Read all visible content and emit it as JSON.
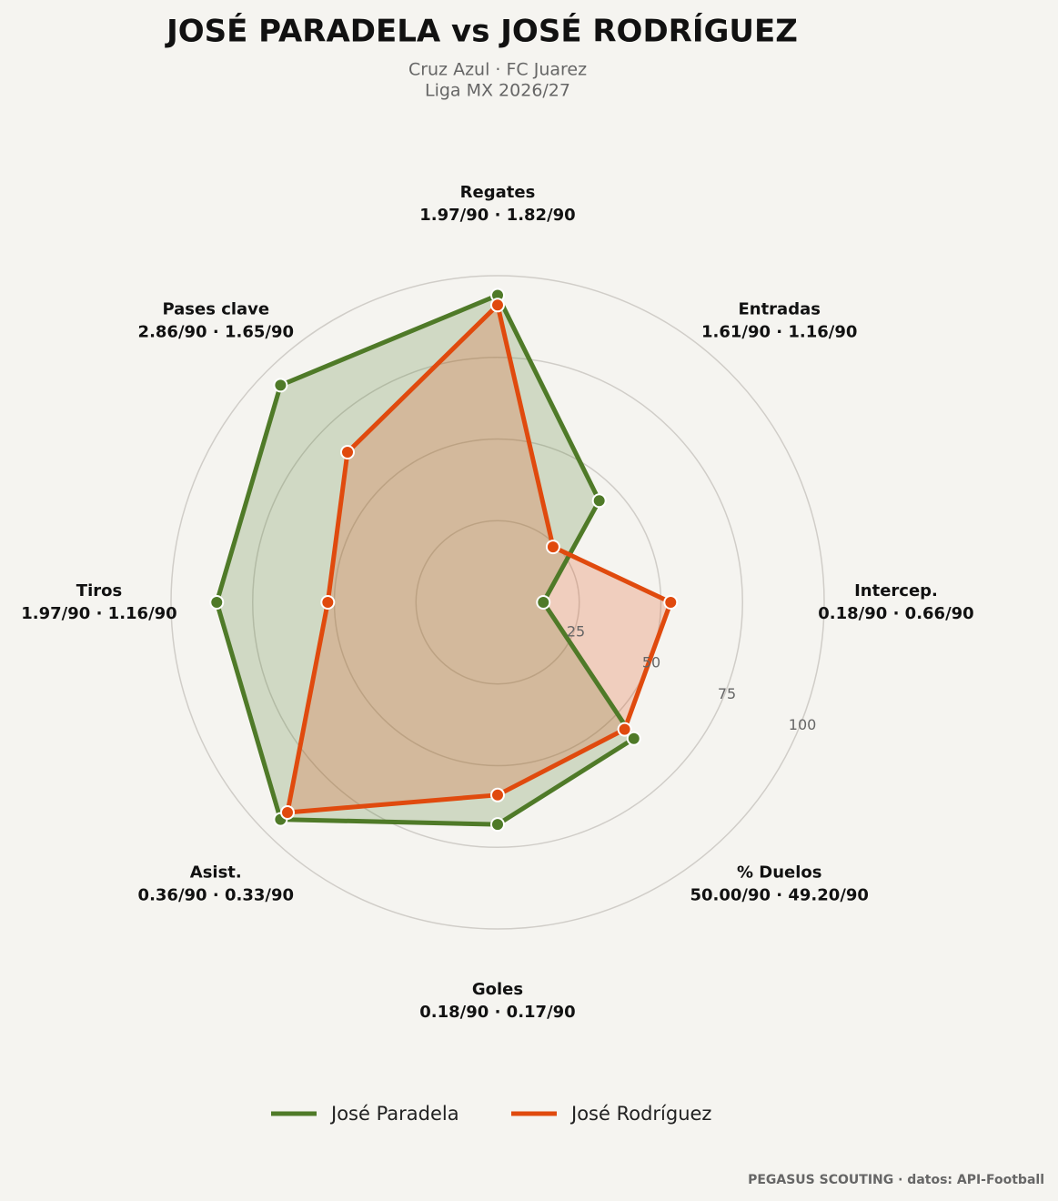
{
  "chart_data": {
    "type": "radar",
    "title": "JOSÉ PARADELA  vs  JOSÉ RODRÍGUEZ",
    "subtitle": [
      "Cruz Azul · FC Juarez",
      "Liga MX 2026/27"
    ],
    "categories": [
      "Regates",
      "Entradas",
      "Intercep.",
      "% Duelos",
      "Goles",
      "Asist.",
      "Tiros",
      "Pases clave"
    ],
    "category_values": [
      "1.97/90 · 1.82/90",
      "1.61/90 · 1.16/90",
      "0.18/90 · 0.66/90",
      "50.00/90 · 49.20/90",
      "0.18/90 · 0.17/90",
      "0.36/90 · 0.33/90",
      "1.97/90 · 1.16/90",
      "2.86/90 · 1.65/90"
    ],
    "series": [
      {
        "name": "José Paradela",
        "color": "#4f7a28",
        "values": [
          94,
          44,
          14,
          59,
          68,
          94,
          86,
          94
        ]
      },
      {
        "name": "José Rodríguez",
        "color": "#e04a0e",
        "values": [
          91,
          24,
          53,
          55,
          59,
          91,
          52,
          65
        ]
      }
    ],
    "rlim": [
      0,
      100
    ],
    "rticks": [
      25,
      50,
      75,
      100
    ],
    "grid": true,
    "footer": "PEGASUS SCOUTING · datos: API-Football"
  }
}
